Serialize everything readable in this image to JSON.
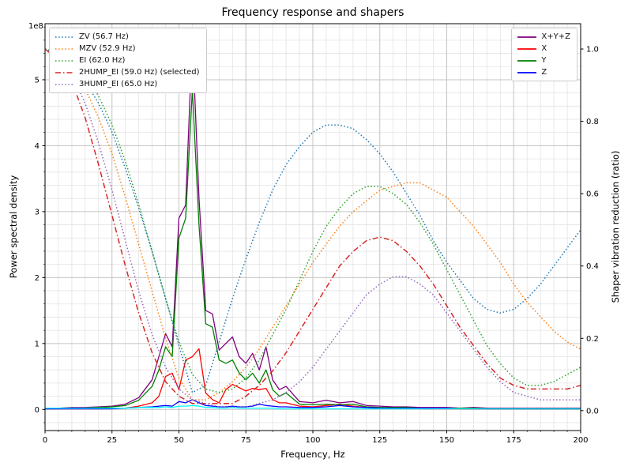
{
  "chart_data": {
    "type": "line",
    "title": "Frequency response and shapers",
    "xlabel": "Frequency, Hz",
    "ylabel_left": "Power spectral density",
    "ylabel_right": "Shaper vibration reduction (ratio)",
    "left_offset_text": "1e8",
    "grid": true,
    "legend_left_position": "upper left",
    "legend_right_position": "upper right",
    "xlim": [
      0,
      200
    ],
    "ylim_left": [
      -0.32,
      5.85
    ],
    "ylim_right": [
      -0.055,
      1.07
    ],
    "x_ticks": [
      0,
      25,
      50,
      75,
      100,
      125,
      150,
      175,
      200
    ],
    "x_tick_labels": [
      "0",
      "25",
      "50",
      "75",
      "100",
      "125",
      "150",
      "175",
      "200"
    ],
    "y_ticks_left": [
      0,
      1,
      2,
      3,
      4,
      5
    ],
    "y_tick_labels_left": [
      "0",
      "1",
      "2",
      "3",
      "4",
      "5"
    ],
    "y_ticks_right": [
      0.0,
      0.2,
      0.4,
      0.6,
      0.8,
      1.0
    ],
    "y_tick_labels_right": [
      "0.0",
      "0.2",
      "0.4",
      "0.6",
      "0.8",
      "1.0"
    ],
    "minor_x_step": 5,
    "minor_y_left_step": 0.2,
    "shaper_x": [
      0,
      5,
      10,
      15,
      20,
      25,
      30,
      35,
      40,
      45,
      50,
      55,
      60,
      65,
      70,
      75,
      80,
      85,
      90,
      95,
      100,
      105,
      110,
      115,
      120,
      125,
      130,
      135,
      140,
      145,
      150,
      155,
      160,
      165,
      170,
      175,
      180,
      185,
      190,
      195,
      200
    ],
    "shapers": [
      {
        "name": "ZV",
        "label": "ZV (56.7 Hz)",
        "freq_hz": 56.7,
        "color": "#1f77b4",
        "linestyle": "dotted",
        "selected": false,
        "values": [
          1.0,
          0.99,
          0.96,
          0.91,
          0.85,
          0.77,
          0.67,
          0.56,
          0.44,
          0.31,
          0.18,
          0.05,
          0.07,
          0.19,
          0.31,
          0.42,
          0.52,
          0.61,
          0.68,
          0.73,
          0.77,
          0.79,
          0.79,
          0.78,
          0.75,
          0.71,
          0.66,
          0.6,
          0.54,
          0.47,
          0.41,
          0.36,
          0.31,
          0.28,
          0.27,
          0.28,
          0.31,
          0.35,
          0.4,
          0.45,
          0.5
        ]
      },
      {
        "name": "MZV",
        "label": "MZV (52.9 Hz)",
        "freq_hz": 52.9,
        "color": "#ff7f0e",
        "linestyle": "dotted",
        "selected": false,
        "values": [
          1.0,
          0.99,
          0.95,
          0.89,
          0.81,
          0.71,
          0.59,
          0.46,
          0.33,
          0.2,
          0.09,
          0.03,
          0.03,
          0.05,
          0.08,
          0.12,
          0.17,
          0.23,
          0.29,
          0.35,
          0.41,
          0.46,
          0.51,
          0.55,
          0.58,
          0.61,
          0.62,
          0.63,
          0.63,
          0.61,
          0.59,
          0.55,
          0.51,
          0.46,
          0.41,
          0.35,
          0.3,
          0.26,
          0.22,
          0.19,
          0.17
        ]
      },
      {
        "name": "EI",
        "label": "EI (62.0 Hz)",
        "freq_hz": 62.0,
        "color": "#2ca02c",
        "linestyle": "dotted",
        "selected": false,
        "values": [
          1.0,
          0.99,
          0.97,
          0.93,
          0.87,
          0.79,
          0.69,
          0.57,
          0.44,
          0.31,
          0.19,
          0.1,
          0.06,
          0.05,
          0.06,
          0.09,
          0.14,
          0.21,
          0.28,
          0.36,
          0.44,
          0.51,
          0.56,
          0.6,
          0.62,
          0.62,
          0.6,
          0.57,
          0.52,
          0.46,
          0.39,
          0.32,
          0.25,
          0.18,
          0.13,
          0.09,
          0.07,
          0.07,
          0.08,
          0.1,
          0.12
        ]
      },
      {
        "name": "2HUMP_EI",
        "label": "2HUMP_EI (59.0 Hz) (selected)",
        "freq_hz": 59.0,
        "color": "#d62728",
        "linestyle": "dashdot",
        "selected": true,
        "values": [
          1.0,
          0.97,
          0.91,
          0.81,
          0.68,
          0.54,
          0.4,
          0.27,
          0.16,
          0.08,
          0.04,
          0.02,
          0.02,
          0.02,
          0.02,
          0.04,
          0.07,
          0.11,
          0.16,
          0.22,
          0.28,
          0.34,
          0.4,
          0.44,
          0.47,
          0.48,
          0.47,
          0.44,
          0.4,
          0.35,
          0.29,
          0.23,
          0.18,
          0.13,
          0.09,
          0.07,
          0.06,
          0.06,
          0.06,
          0.06,
          0.07
        ]
      },
      {
        "name": "3HUMP_EI",
        "label": "3HUMP_EI (65.0 Hz)",
        "freq_hz": 65.0,
        "color": "#9467bd",
        "linestyle": "dotted",
        "selected": false,
        "values": [
          1.0,
          0.98,
          0.93,
          0.85,
          0.74,
          0.61,
          0.47,
          0.33,
          0.21,
          0.12,
          0.06,
          0.03,
          0.02,
          0.01,
          0.01,
          0.01,
          0.02,
          0.03,
          0.05,
          0.08,
          0.12,
          0.17,
          0.22,
          0.27,
          0.32,
          0.35,
          0.37,
          0.37,
          0.35,
          0.32,
          0.27,
          0.22,
          0.17,
          0.12,
          0.08,
          0.05,
          0.04,
          0.03,
          0.03,
          0.03,
          0.03
        ]
      }
    ],
    "psd_x": [
      0,
      5,
      10,
      15,
      20,
      25,
      30,
      35,
      40,
      42.5,
      45,
      47.5,
      50,
      52.5,
      55,
      57.5,
      60,
      62.5,
      65,
      67.5,
      70,
      72.5,
      75,
      77.5,
      80,
      82.5,
      85,
      87.5,
      90,
      95,
      100,
      105,
      110,
      115,
      120,
      125,
      130,
      135,
      140,
      145,
      150,
      155,
      160,
      165,
      170,
      175,
      180,
      185,
      190,
      195,
      200
    ],
    "psd_unit": "1e8",
    "psd": [
      {
        "name": "X+Y+Z",
        "color": "#800080",
        "in_legend": true,
        "values": [
          0.02,
          0.02,
          0.03,
          0.03,
          0.04,
          0.05,
          0.08,
          0.18,
          0.45,
          0.8,
          1.15,
          0.95,
          2.9,
          3.1,
          5.65,
          3.2,
          1.5,
          1.45,
          0.9,
          1.0,
          1.1,
          0.8,
          0.7,
          0.85,
          0.6,
          0.95,
          0.45,
          0.3,
          0.35,
          0.12,
          0.1,
          0.14,
          0.1,
          0.12,
          0.06,
          0.05,
          0.04,
          0.04,
          0.03,
          0.03,
          0.03,
          0.02,
          0.03,
          0.02,
          0.02,
          0.02,
          0.02,
          0.02,
          0.02,
          0.02,
          0.02
        ]
      },
      {
        "name": "X",
        "color": "#ff0000",
        "in_legend": true,
        "values": [
          0.01,
          0.01,
          0.01,
          0.01,
          0.01,
          0.02,
          0.02,
          0.05,
          0.1,
          0.2,
          0.5,
          0.55,
          0.3,
          0.75,
          0.8,
          0.92,
          0.25,
          0.15,
          0.1,
          0.3,
          0.38,
          0.33,
          0.28,
          0.32,
          0.3,
          0.32,
          0.15,
          0.1,
          0.1,
          0.05,
          0.04,
          0.06,
          0.08,
          0.05,
          0.03,
          0.02,
          0.02,
          0.02,
          0.01,
          0.01,
          0.01,
          0.01,
          0.01,
          0.01,
          0.01,
          0.01,
          0.01,
          0.01,
          0.01,
          0.01,
          0.01
        ]
      },
      {
        "name": "Y",
        "color": "#008000",
        "in_legend": true,
        "values": [
          0.01,
          0.01,
          0.02,
          0.02,
          0.03,
          0.04,
          0.06,
          0.14,
          0.35,
          0.6,
          0.95,
          0.8,
          2.6,
          2.9,
          4.85,
          2.8,
          1.3,
          1.25,
          0.75,
          0.7,
          0.75,
          0.55,
          0.45,
          0.55,
          0.4,
          0.6,
          0.3,
          0.2,
          0.25,
          0.08,
          0.07,
          0.08,
          0.07,
          0.08,
          0.04,
          0.03,
          0.03,
          0.03,
          0.02,
          0.02,
          0.02,
          0.02,
          0.02,
          0.01,
          0.01,
          0.01,
          0.01,
          0.01,
          0.01,
          0.01,
          0.01
        ]
      },
      {
        "name": "Z",
        "color": "#0000ff",
        "in_legend": true,
        "values": [
          0.01,
          0.01,
          0.01,
          0.01,
          0.01,
          0.01,
          0.02,
          0.03,
          0.04,
          0.05,
          0.06,
          0.05,
          0.12,
          0.1,
          0.15,
          0.1,
          0.06,
          0.05,
          0.04,
          0.04,
          0.05,
          0.04,
          0.04,
          0.05,
          0.08,
          0.06,
          0.05,
          0.04,
          0.04,
          0.03,
          0.03,
          0.04,
          0.06,
          0.04,
          0.03,
          0.02,
          0.02,
          0.02,
          0.02,
          0.02,
          0.02,
          0.01,
          0.01,
          0.01,
          0.01,
          0.01,
          0.01,
          0.01,
          0.01,
          0.01,
          0.01
        ]
      },
      {
        "name": "after_shaper",
        "color": "#00ffff",
        "in_legend": false,
        "values": [
          0.02,
          0.02,
          0.02,
          0.02,
          0.02,
          0.02,
          0.02,
          0.03,
          0.03,
          0.03,
          0.04,
          0.03,
          0.05,
          0.05,
          0.06,
          0.05,
          0.03,
          0.03,
          0.02,
          0.02,
          0.03,
          0.02,
          0.02,
          0.02,
          0.02,
          0.02,
          0.02,
          0.01,
          0.01,
          0.01,
          0.01,
          0.01,
          0.01,
          0.01,
          0.01,
          0.01,
          0.01,
          0.01,
          0.01,
          0.01,
          0.01,
          0.01,
          0.01,
          0.01,
          0.01,
          0.01,
          0.01,
          0.01,
          0.01,
          0.01,
          0.01
        ]
      }
    ]
  }
}
